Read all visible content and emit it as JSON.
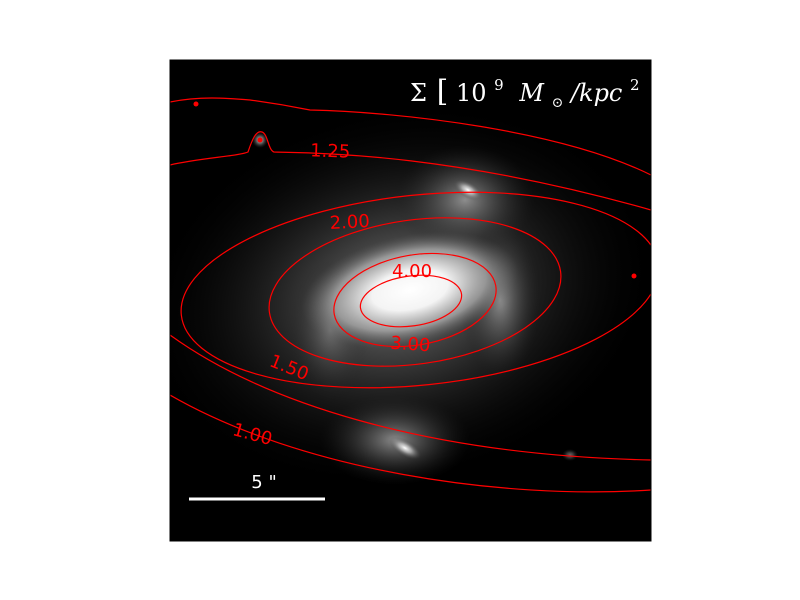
{
  "figure": {
    "title_symbol": "Σ",
    "title_base": "10",
    "title_exponent": "9",
    "title_mass": "M",
    "title_mass_sub": "⊙",
    "title_unit": "/kpc",
    "title_unit_exp": "2",
    "scale_bar_label": "5 \"",
    "contour_color": "#ff0000",
    "background_color": "#000000"
  },
  "contours": [
    {
      "label": "1.00"
    },
    {
      "label": "1.25"
    },
    {
      "label": "1.50"
    },
    {
      "label": "2.00"
    },
    {
      "label": "3.00"
    },
    {
      "label": "4.00"
    }
  ]
}
